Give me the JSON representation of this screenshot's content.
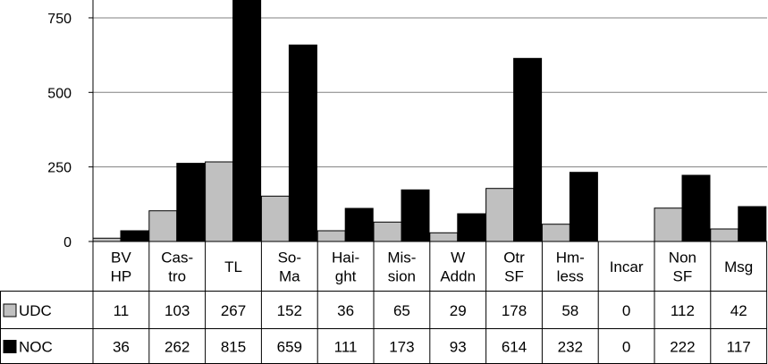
{
  "chart_data": {
    "type": "bar",
    "categories": [
      [
        "BV",
        "HP"
      ],
      [
        "Cas-",
        "tro"
      ],
      [
        "TL"
      ],
      [
        "So-",
        "Ma"
      ],
      [
        "Hai-",
        "ght"
      ],
      [
        "Mis-",
        "sion"
      ],
      [
        "W",
        "Addn"
      ],
      [
        "Otr",
        "SF"
      ],
      [
        "Hm-",
        "less"
      ],
      [
        "Incar"
      ],
      [
        "Non",
        "SF"
      ],
      [
        "Msg"
      ]
    ],
    "series": [
      {
        "name": "UDC",
        "color": "#c0c0c0",
        "values": [
          11,
          103,
          267,
          152,
          36,
          65,
          29,
          178,
          58,
          0,
          112,
          42
        ]
      },
      {
        "name": "NOC",
        "color": "#000000",
        "values": [
          36,
          262,
          815,
          659,
          111,
          173,
          93,
          614,
          232,
          0,
          222,
          117
        ]
      }
    ],
    "y_ticks": [
      "0",
      "250",
      "500",
      "750"
    ],
    "ylim": [
      0,
      790
    ],
    "legend": "data-table",
    "grid": "horizontal"
  }
}
